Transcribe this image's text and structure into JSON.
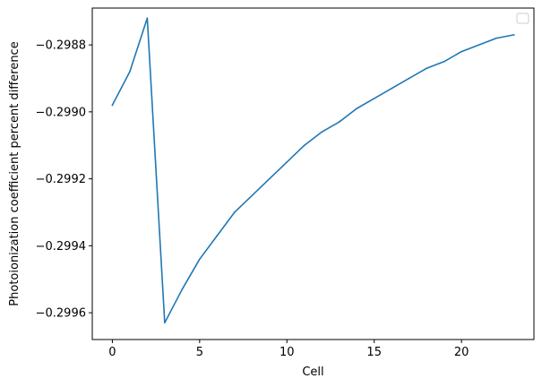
{
  "chart_data": {
    "type": "line",
    "title": "",
    "xlabel": "Cell",
    "ylabel": "Photoionization coefficient percent difference",
    "xlim": [
      -1.15,
      24.15
    ],
    "ylim": [
      -0.29968,
      -0.29869
    ],
    "x_ticks": [
      0,
      5,
      10,
      15,
      20
    ],
    "x_tick_labels": [
      "0",
      "5",
      "10",
      "15",
      "20"
    ],
    "y_ticks": [
      -0.2996,
      -0.2994,
      -0.2992,
      -0.299,
      -0.2988
    ],
    "y_tick_labels": [
      "−0.2996",
      "−0.2994",
      "−0.2992",
      "−0.2990",
      "−0.2988"
    ],
    "grid": false,
    "legend": {
      "placement": "top-right",
      "entries": []
    },
    "colors": {
      "line": "#1f77b4"
    },
    "series": [
      {
        "x": [
          0,
          1,
          2,
          3,
          4,
          5,
          6,
          7,
          8,
          9,
          10,
          11,
          12,
          13,
          14,
          15,
          16,
          17,
          18,
          19,
          20,
          21,
          22,
          23
        ],
        "values": [
          -0.29898,
          -0.29888,
          -0.29872,
          -0.29963,
          -0.29953,
          -0.29944,
          -0.29937,
          -0.2993,
          -0.29925,
          -0.2992,
          -0.29915,
          -0.2991,
          -0.29906,
          -0.29903,
          -0.29899,
          -0.29896,
          -0.29893,
          -0.2989,
          -0.29887,
          -0.29885,
          -0.29882,
          -0.2988,
          -0.29878,
          -0.29877
        ]
      }
    ]
  }
}
